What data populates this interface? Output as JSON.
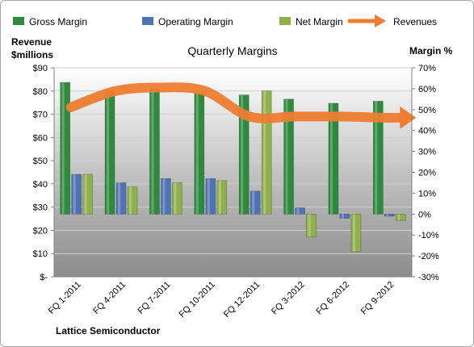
{
  "chart_data": {
    "type": "bar",
    "title": "Quarterly Margins",
    "left_axis_title": [
      "Revenue",
      "$millions"
    ],
    "right_axis_title": "Margin %",
    "footer": "Lattice Semiconductor",
    "categories": [
      "FQ 1-2011",
      "FQ 4-2011",
      "FQ 7-2011",
      "FQ 10-2011",
      "FQ 12-2011",
      "FQ 3-2012",
      "FQ 6-2012",
      "FQ 9-2012"
    ],
    "left_axis": {
      "ylim": [
        0,
        90
      ],
      "ticks": [
        0,
        10,
        20,
        30,
        40,
        50,
        60,
        70,
        80,
        90
      ],
      "tick_labels": [
        "$-",
        "$10",
        "$20",
        "$30",
        "$40",
        "$50",
        "$60",
        "$70",
        "$80",
        "$90"
      ]
    },
    "right_axis": {
      "ylim": [
        -30,
        70
      ],
      "ticks": [
        -30,
        -20,
        -10,
        0,
        10,
        20,
        30,
        40,
        50,
        60,
        70
      ],
      "tick_labels": [
        "-30%",
        "-20%",
        "-10%",
        "0%",
        "10%",
        "20%",
        "30%",
        "40%",
        "50%",
        "60%",
        "70%"
      ]
    },
    "series": [
      {
        "name": "Gross Margin",
        "axis": "right",
        "kind": "bar",
        "color": "#2e8b3d",
        "values": [
          63,
          59,
          60,
          58,
          57,
          55,
          53,
          54
        ]
      },
      {
        "name": "Operating Margin",
        "axis": "right",
        "kind": "bar",
        "color": "#4f73b5",
        "values": [
          19,
          15,
          17,
          17,
          11,
          3,
          -2,
          -1
        ]
      },
      {
        "name": "Net Margin",
        "axis": "right",
        "kind": "bar",
        "color": "#8fb14c",
        "values": [
          19,
          13,
          15,
          16,
          59,
          -11,
          -18,
          -3
        ]
      },
      {
        "name": "Revenues",
        "axis": "left",
        "kind": "line",
        "color": "#ed7d31",
        "values": [
          73,
          80,
          81.5,
          80,
          69,
          69,
          69,
          68.5
        ]
      }
    ],
    "legend_position": "top",
    "grid": true
  }
}
